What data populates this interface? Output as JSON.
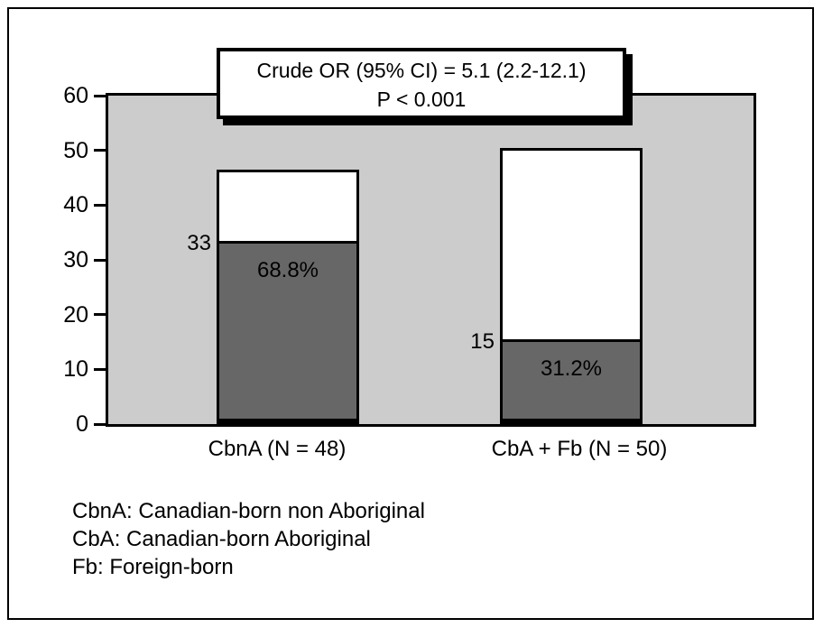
{
  "chart_data": {
    "type": "bar",
    "subtype": "stacked",
    "title": "",
    "xlabel": "",
    "ylabel": "",
    "categories": [
      "CbnA (N = 48)",
      "CbA + Fb (N = 50)"
    ],
    "series": [
      {
        "name": "shaded-segment",
        "values": [
          33,
          15
        ],
        "color": "#676767"
      },
      {
        "name": "unshaded-segment",
        "values": [
          13.5,
          35.5
        ],
        "color": "#ffffff"
      }
    ],
    "bar_totals": [
      46.5,
      50.5
    ],
    "count_labels": [
      "33",
      "15"
    ],
    "percent_labels": [
      "68.8%",
      "31.2%"
    ],
    "ylim": [
      0,
      60
    ],
    "y_ticks": [
      0,
      10,
      20,
      30,
      40,
      50,
      60
    ],
    "grid": false,
    "legend_position": "none",
    "plot_background": "#cccccc",
    "annotation": {
      "line1": "Crude OR (95% CI) = 5.1 (2.2-12.1)",
      "line2": "P < 0.001"
    },
    "footnotes": [
      "CbnA: Canadian-born non Aboriginal",
      "CbA: Canadian-born Aboriginal",
      "Fb: Foreign-born"
    ]
  }
}
